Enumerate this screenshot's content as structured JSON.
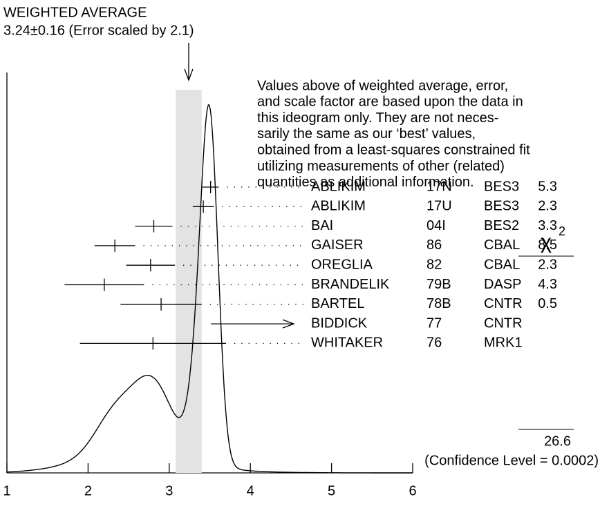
{
  "chart_data": {
    "type": "ideogram",
    "title": "WEIGHTED AVERAGE",
    "subtitle": "3.24±0.16 (Error scaled by 2.1)",
    "average": 3.24,
    "average_error": 0.16,
    "note": [
      "Values above of weighted average, error,",
      "and scale factor are based upon the data in",
      "this ideogram only.  They are not neces-",
      "sarily the same as our ‘best’ values,",
      "obtained from a least-squares constrained fit",
      "utilizing measurements of other (related)",
      "quantities as additional information."
    ],
    "xlim": [
      1,
      6
    ],
    "xticks": [
      1,
      2,
      3,
      4,
      5,
      6
    ],
    "chi2_symbol": "χ",
    "chi2_exponent": "2",
    "measurements": {
      "names": [
        "ABLIKIM",
        "ABLIKIM",
        "BAI",
        "GAISER",
        "OREGLIA",
        "BRANDELIK",
        "BARTEL",
        "BIDDICK",
        "WHITAKER"
      ],
      "refs": [
        "17N",
        "17U",
        "04I",
        "86",
        "82",
        "79B",
        "78B",
        "77",
        "76"
      ],
      "experiments": [
        "BES3",
        "BES3",
        "BES2",
        "CBAL",
        "CBAL",
        "DASP",
        "CNTR",
        "CNTR",
        "MRK1"
      ],
      "values": [
        3.51,
        3.42,
        2.81,
        2.33,
        2.77,
        2.2,
        2.9,
        null,
        2.8
      ],
      "errors": [
        0.1,
        0.13,
        0.23,
        0.25,
        0.3,
        0.49,
        0.5,
        null,
        0.9
      ],
      "chi2": [
        5.3,
        2.3,
        3.3,
        8.5,
        2.3,
        4.3,
        0.5,
        null,
        null
      ]
    },
    "chi2_total": 26.6,
    "confidence_level": "(Confidence Level = 0.0002)"
  }
}
